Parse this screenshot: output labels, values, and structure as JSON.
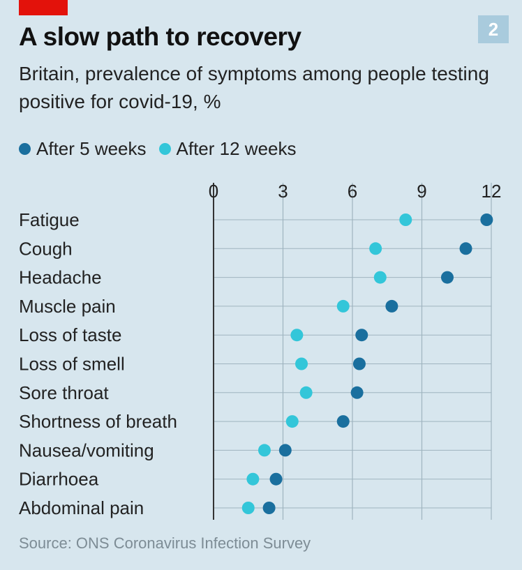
{
  "header": {
    "badge": "2",
    "title": "A slow path to recovery",
    "subtitle": "Britain, prevalence of symptoms among people testing positive for covid-19, %"
  },
  "colors": {
    "after_5_weeks": "#1a6f9e",
    "after_12_weeks": "#33c6d9",
    "grid": "#9fb4bf",
    "axis": "#333333"
  },
  "chart_data": {
    "type": "scatter",
    "title": "A slow path to recovery",
    "xlabel": "",
    "ylabel": "",
    "xlim": [
      0,
      12
    ],
    "xticks": [
      "0",
      "3",
      "6",
      "9",
      "12"
    ],
    "categories": [
      "Fatigue",
      "Cough",
      "Headache",
      "Muscle pain",
      "Loss of taste",
      "Loss of smell",
      "Sore throat",
      "Shortness of breath",
      "Nausea/vomiting",
      "Diarrhoea",
      "Abdominal pain"
    ],
    "series": [
      {
        "name": "After 5 weeks",
        "values": [
          11.8,
          10.9,
          10.1,
          7.7,
          6.4,
          6.3,
          6.2,
          5.6,
          3.1,
          2.7,
          2.4
        ]
      },
      {
        "name": "After 12 weeks",
        "values": [
          8.3,
          7.0,
          7.2,
          5.6,
          3.6,
          3.8,
          4.0,
          3.4,
          2.2,
          1.7,
          1.5
        ]
      }
    ],
    "legend": "top-left"
  },
  "source": "Source: ONS Coronavirus Infection Survey"
}
